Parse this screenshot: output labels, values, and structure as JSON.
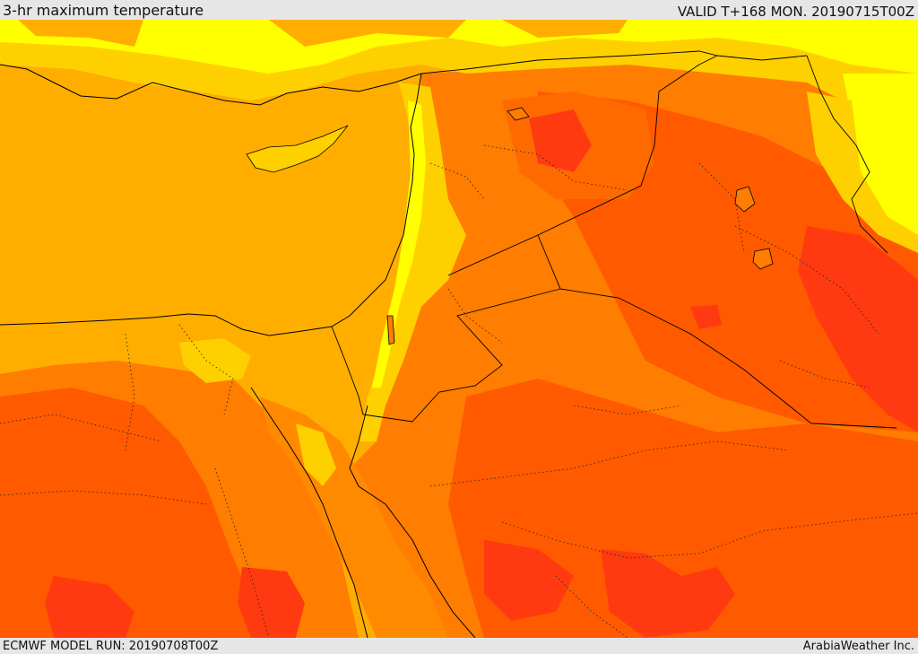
{
  "header": {
    "title": "3-hr maximum temperature",
    "valid": "VALID T+168 MON. 20190715T00Z"
  },
  "footer": {
    "model_run": "ECMWF MODEL RUN: 20190708T00Z",
    "brand": "ArabiaWeather Inc."
  },
  "colors": {
    "sea": "#ffae00",
    "very_hot": "#ff7d00",
    "hot": "#ff5a00",
    "extreme": "#ff3a10",
    "warm": "#ffd000",
    "mild": "#ffff00",
    "border": "#000000"
  }
}
